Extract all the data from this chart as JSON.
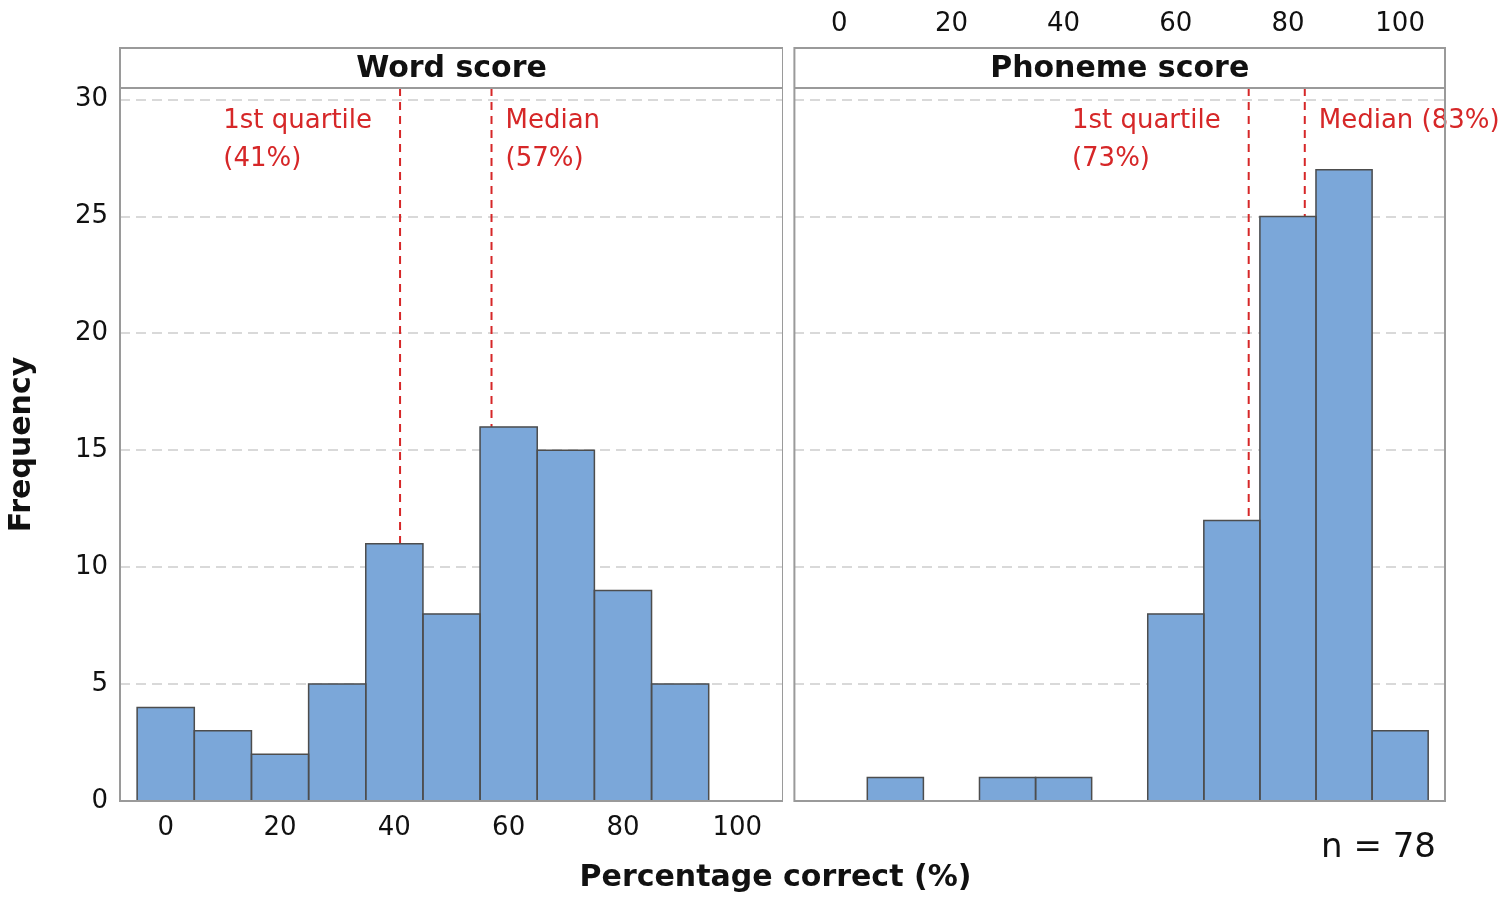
{
  "chart_data": [
    {
      "type": "histogram",
      "title": "Word score",
      "xlabel": "Percentage correct (%)",
      "ylabel": "Frequency",
      "bins": [
        -5,
        5,
        15,
        25,
        35,
        45,
        55,
        65,
        75,
        85,
        95,
        105
      ],
      "values": [
        4,
        3,
        2,
        5,
        11,
        8,
        16,
        15,
        9,
        5,
        0
      ],
      "color": "#7ba7d9",
      "xlim": [
        -8,
        108
      ],
      "xticks": [
        0,
        20,
        40,
        60,
        80,
        100
      ],
      "ylim": [
        0,
        30.5
      ],
      "yticks": [
        0,
        5,
        10,
        15,
        20,
        25,
        30
      ],
      "grid": "y",
      "ref_lines": [
        {
          "axis": "x",
          "value": 41,
          "label": "1st quartile\n(41%)",
          "color": "#d62728",
          "line_style": "dashed"
        },
        {
          "axis": "x",
          "value": 57,
          "label": "Median\n(57%)",
          "color": "#d62728",
          "line_style": "dashed"
        }
      ]
    },
    {
      "type": "histogram",
      "title": "Phoneme score",
      "bins": [
        -5,
        5,
        15,
        25,
        35,
        45,
        55,
        65,
        75,
        85,
        95,
        105
      ],
      "values": [
        0,
        1,
        0,
        1,
        1,
        0,
        8,
        12,
        25,
        27,
        3
      ],
      "color": "#7ba7d9",
      "xlim": [
        -8,
        108
      ],
      "xticks": [
        0,
        20,
        40,
        60,
        80,
        100
      ],
      "ylim": [
        0,
        30.5
      ],
      "yticks": [
        0,
        5,
        10,
        15,
        20,
        25,
        30
      ],
      "grid": "y",
      "tick_labels": "x",
      "annotations": [
        "n = 78"
      ],
      "ref_lines": [
        {
          "axis": "x",
          "value": 73,
          "label": "1st quartile\n(73%)",
          "color": "#d62728",
          "line_style": "dashed"
        },
        {
          "axis": "x",
          "value": 83,
          "label": "Median (83%)",
          "color": "#d62728",
          "line_style": "dashed"
        }
      ]
    }
  ]
}
